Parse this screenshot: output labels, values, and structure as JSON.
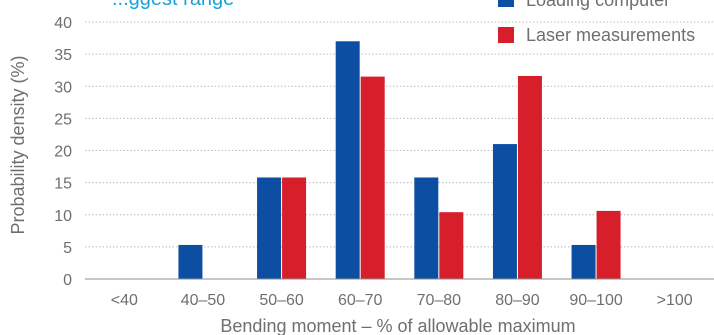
{
  "chart_data": {
    "type": "bar",
    "title": "...ggest range",
    "xlabel": "Bending moment – % of allowable maximum",
    "ylabel": "Probability density (%)",
    "ylim": [
      0,
      40
    ],
    "yticks": [
      0,
      5,
      10,
      15,
      20,
      25,
      30,
      35,
      40
    ],
    "categories": [
      "<40",
      "40–50",
      "50–60",
      "60–70",
      "70–80",
      "80–90",
      "90–100",
      ">100"
    ],
    "series": [
      {
        "name": "Loading computer",
        "color": "#0b4ea2",
        "values": [
          0,
          5.3,
          15.8,
          37,
          15.8,
          21,
          5.3,
          0
        ]
      },
      {
        "name": "Laser measurements",
        "color": "#d71f2b",
        "values": [
          0,
          0,
          15.8,
          31.5,
          10.4,
          31.6,
          10.6,
          0
        ]
      }
    ],
    "grid": true,
    "legend": "top-right"
  }
}
